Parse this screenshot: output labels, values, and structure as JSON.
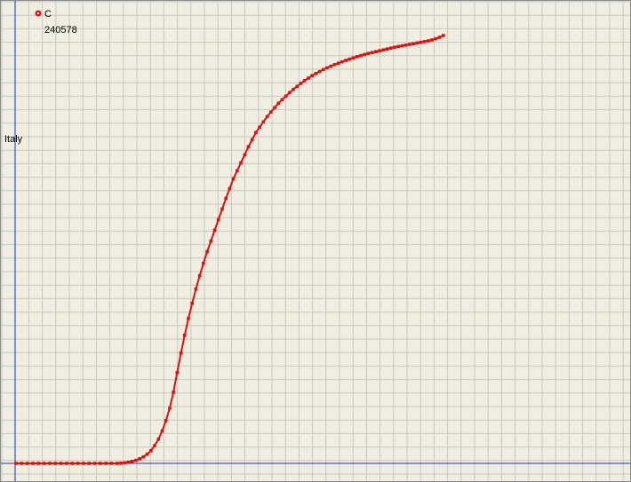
{
  "colors": {
    "background": "#efeee0",
    "grid": "#c8c8c0",
    "axis": "#2030c8",
    "series": "#e01010",
    "border": "#8a8a8a"
  },
  "legend": {
    "marker_icon": "red-circle-marker-icon",
    "series_name": "C",
    "value": "240578"
  },
  "chart_data": {
    "type": "scatter",
    "title": "",
    "xlabel": "",
    "ylabel": "Italy",
    "grid": true,
    "legend_placement": "top-left",
    "xlim": [
      0,
      230
    ],
    "ylim": [
      0,
      245000
    ],
    "series": [
      {
        "name": "C",
        "x": [
          0,
          3,
          6,
          9,
          12,
          15,
          18,
          21,
          24,
          27,
          30,
          33,
          36,
          39,
          42,
          45,
          48,
          51,
          54,
          56,
          58,
          60,
          62,
          64,
          66,
          68,
          70,
          72,
          74,
          76,
          78,
          80,
          82,
          84,
          86,
          88,
          90,
          92,
          94,
          96,
          98,
          100,
          102,
          104,
          106,
          108,
          110,
          112,
          114,
          116,
          118,
          120,
          122,
          124,
          126,
          128,
          130,
          132,
          134,
          136,
          138,
          140,
          142,
          144,
          146,
          148,
          150,
          152,
          154,
          156,
          158,
          160,
          162,
          164,
          166,
          168,
          170,
          172,
          174,
          176,
          178,
          180,
          182,
          184,
          186,
          188,
          190,
          192,
          194,
          196,
          198,
          200,
          202,
          204,
          206,
          208,
          210,
          212,
          214,
          216,
          218,
          220,
          222,
          224,
          226,
          228
        ],
        "y": [
          0,
          0,
          0,
          0,
          0,
          0,
          0,
          0,
          0,
          0,
          0,
          0,
          0,
          0,
          0,
          0,
          0,
          0,
          0,
          100,
          300,
          600,
          1100,
          1700,
          2600,
          3700,
          5200,
          7100,
          10000,
          13600,
          18200,
          24000,
          31000,
          40000,
          51000,
          62000,
          72000,
          81500,
          90000,
          98000,
          105500,
          112500,
          119000,
          125000,
          131000,
          137000,
          143000,
          149000,
          154500,
          160000,
          164500,
          169000,
          173500,
          178000,
          182000,
          186000,
          189000,
          192000,
          195000,
          197500,
          200000,
          202500,
          204500,
          206500,
          208500,
          210300,
          212000,
          213700,
          215200,
          216600,
          218000,
          219200,
          220300,
          221400,
          222400,
          223300,
          224200,
          225000,
          225800,
          226600,
          227300,
          228000,
          228700,
          229300,
          229900,
          230500,
          231000,
          231500,
          232000,
          232500,
          233000,
          233500,
          234000,
          234400,
          234800,
          235200,
          235600,
          236000,
          236400,
          236800,
          237200,
          237600,
          238100,
          238800,
          239600,
          240578
        ]
      }
    ]
  }
}
